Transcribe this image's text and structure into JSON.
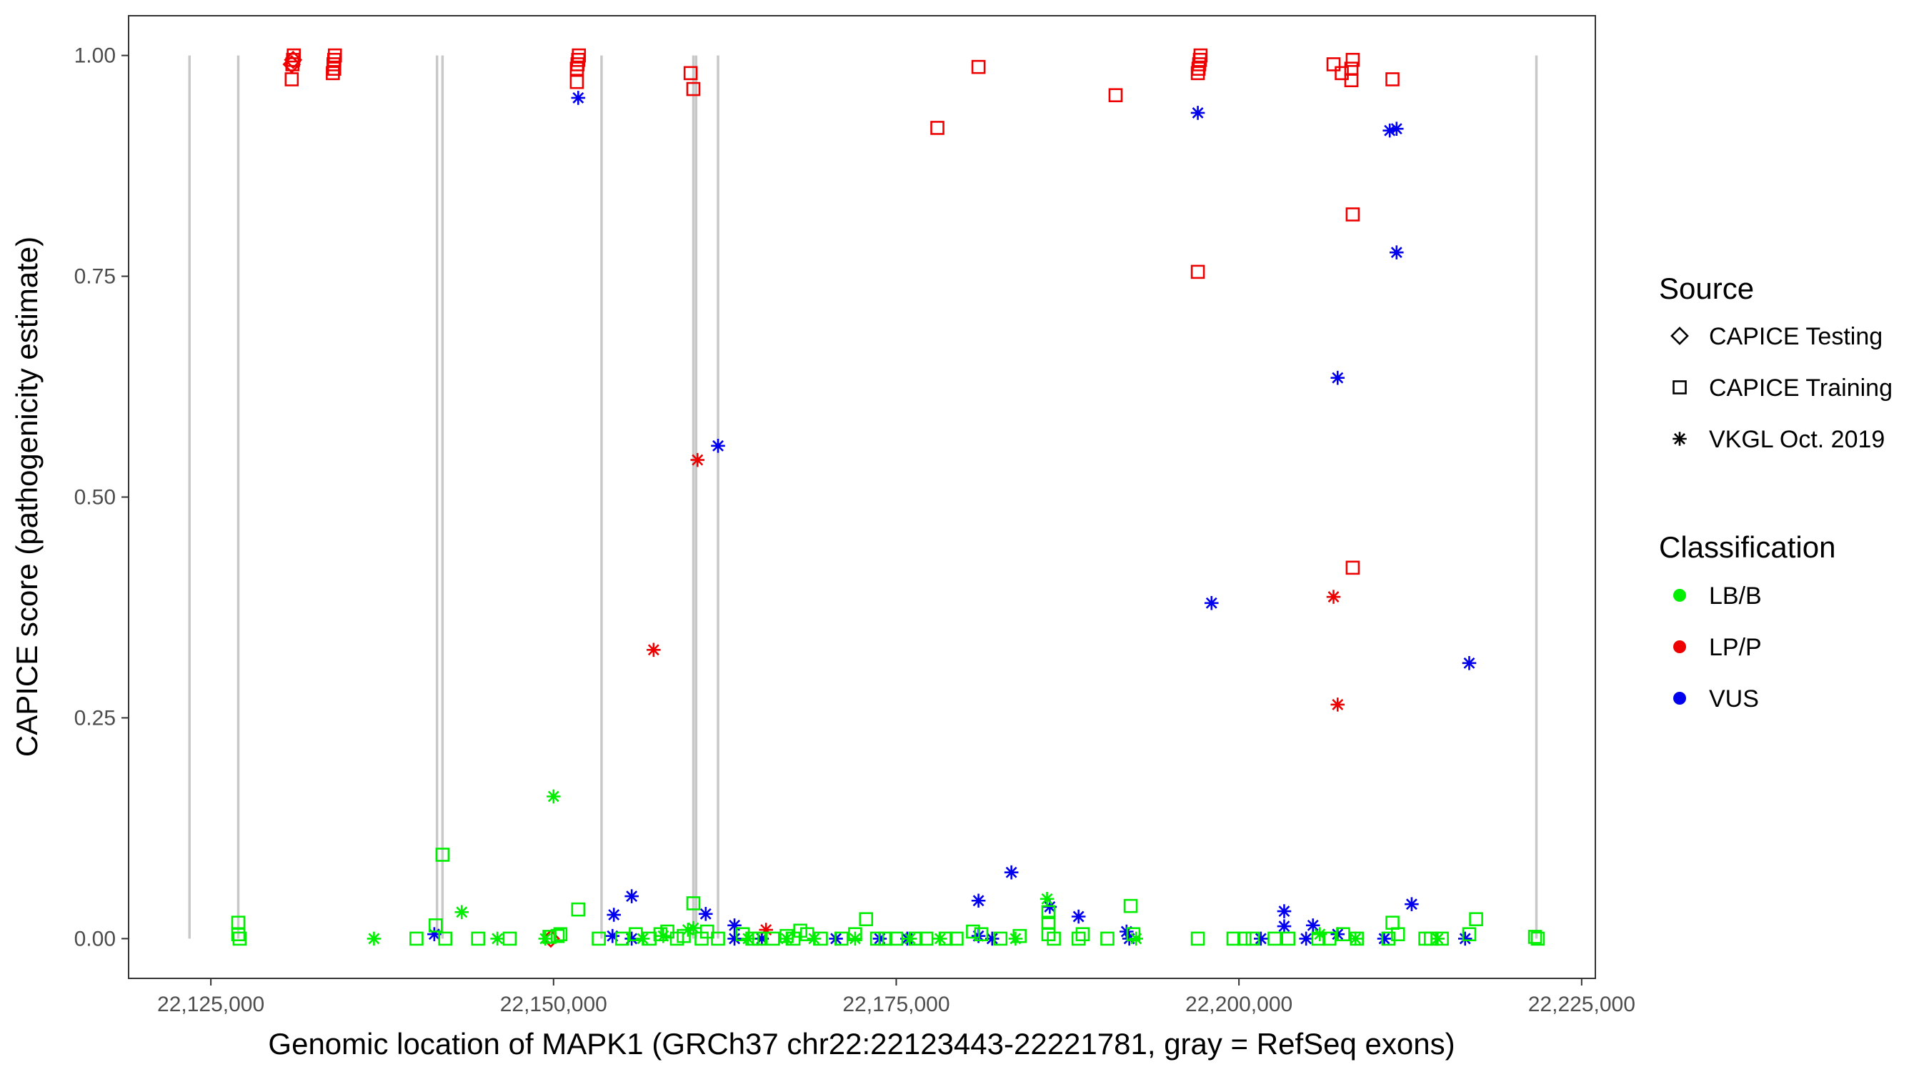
{
  "chart_data": {
    "type": "scatter",
    "title": "",
    "xlabel": "Genomic location of MAPK1 (GRCh37 chr22:22123443-22221781, gray = RefSeq exons)",
    "ylabel": "CAPICE score (pathogenicity estimate)",
    "xlim": [
      22119000,
      22226000
    ],
    "ylim": [
      -0.045,
      1.045
    ],
    "x_ticks": [
      22125000,
      22150000,
      22175000,
      22200000,
      22225000
    ],
    "x_tick_labels": [
      "22,125,000",
      "22,150,000",
      "22,175,000",
      "22,200,000",
      "22,225,000"
    ],
    "y_ticks": [
      0,
      0.25,
      0.5,
      0.75,
      1
    ],
    "y_tick_labels": [
      "0.00",
      "0.25",
      "0.50",
      "0.75",
      "1.00"
    ],
    "grid": false,
    "exons": [
      22123443,
      22127000,
      22141500,
      22141900,
      22153500,
      22160200,
      22160400,
      22162000,
      22221700
    ],
    "exon_color": "#c8c8c8",
    "legend_position": "right",
    "legend": {
      "source_title": "Source",
      "source_items": [
        {
          "label": "CAPICE Testing",
          "shape": "diamond"
        },
        {
          "label": "CAPICE Training",
          "shape": "square"
        },
        {
          "label": "VKGL Oct. 2019",
          "shape": "asterisk"
        }
      ],
      "class_title": "Classification",
      "class_items": [
        {
          "label": "LB/B",
          "color": "#00ee00"
        },
        {
          "label": "LP/P",
          "color": "#ee0000"
        },
        {
          "label": "VUS",
          "color": "#0000ee"
        }
      ]
    },
    "series": [
      {
        "source": "CAPICE Testing",
        "classification": "LP/P",
        "shape": "diamond",
        "color": "#ee0000",
        "points": [
          [
            22130900,
            0.99
          ],
          [
            22131000,
            0.995
          ],
          [
            22149800,
            0.0
          ]
        ]
      },
      {
        "source": "CAPICE Training",
        "classification": "LP/P",
        "shape": "square",
        "color": "#ee0000",
        "points": [
          [
            22130900,
            0.973
          ],
          [
            22130950,
            0.99
          ],
          [
            22131000,
            0.995
          ],
          [
            22131050,
            1.0
          ],
          [
            22133900,
            0.98
          ],
          [
            22133950,
            0.99
          ],
          [
            22134000,
            0.995
          ],
          [
            22134050,
            1.0
          ],
          [
            22134000,
            0.985
          ],
          [
            22151700,
            0.97
          ],
          [
            22151700,
            0.985
          ],
          [
            22151750,
            0.99
          ],
          [
            22151800,
            0.995
          ],
          [
            22151850,
            1.0
          ],
          [
            22160000,
            0.98
          ],
          [
            22160200,
            0.962
          ],
          [
            22178000,
            0.918
          ],
          [
            22181000,
            0.987
          ],
          [
            22191000,
            0.955
          ],
          [
            22197000,
            0.755
          ],
          [
            22197000,
            0.98
          ],
          [
            22197050,
            0.985
          ],
          [
            22197100,
            0.99
          ],
          [
            22197150,
            0.995
          ],
          [
            22197200,
            1.0
          ],
          [
            22206900,
            0.99
          ],
          [
            22207500,
            0.98
          ],
          [
            22208200,
            0.972
          ],
          [
            22208200,
            0.985
          ],
          [
            22208300,
            0.995
          ],
          [
            22208300,
            0.82
          ],
          [
            22208300,
            0.42
          ],
          [
            22211200,
            0.973
          ]
        ]
      },
      {
        "source": "VKGL Oct. 2019",
        "classification": "LP/P",
        "shape": "asterisk",
        "color": "#ee0000",
        "points": [
          [
            22157300,
            0.327
          ],
          [
            22160500,
            0.542
          ],
          [
            22165500,
            0.01
          ],
          [
            22206900,
            0.387
          ],
          [
            22207200,
            0.265
          ]
        ]
      },
      {
        "source": "VKGL Oct. 2019",
        "classification": "VUS",
        "shape": "asterisk",
        "color": "#0000ee",
        "points": [
          [
            22151800,
            0.952
          ],
          [
            22162000,
            0.558
          ],
          [
            22197000,
            0.935
          ],
          [
            22198000,
            0.38
          ],
          [
            22207200,
            0.635
          ],
          [
            22211000,
            0.915
          ],
          [
            22211500,
            0.917
          ],
          [
            22211500,
            0.777
          ],
          [
            22216800,
            0.312
          ],
          [
            22141300,
            0.005
          ],
          [
            22154400,
            0.027
          ],
          [
            22155700,
            0.048
          ],
          [
            22154300,
            0.003
          ],
          [
            22155700,
            0.0
          ],
          [
            22161100,
            0.028
          ],
          [
            22163200,
            0.015
          ],
          [
            22163200,
            0.0
          ],
          [
            22165200,
            0.0
          ],
          [
            22170600,
            0.0
          ],
          [
            22173800,
            0.0
          ],
          [
            22175800,
            0.0
          ],
          [
            22181000,
            0.043
          ],
          [
            22181000,
            0.003
          ],
          [
            22182000,
            0.0
          ],
          [
            22183400,
            0.075
          ],
          [
            22186200,
            0.036
          ],
          [
            22188300,
            0.025
          ],
          [
            22191800,
            0.008
          ],
          [
            22192000,
            0.0
          ],
          [
            22201600,
            0.0
          ],
          [
            22203300,
            0.031
          ],
          [
            22203300,
            0.014
          ],
          [
            22204900,
            0.0
          ],
          [
            22205400,
            0.015
          ],
          [
            22207200,
            0.005
          ],
          [
            22210600,
            0.0
          ],
          [
            22212600,
            0.039
          ],
          [
            22216500,
            0.0
          ]
        ]
      },
      {
        "source": "VKGL Oct. 2019",
        "classification": "LB/B",
        "shape": "asterisk",
        "color": "#00ee00",
        "points": [
          [
            22150000,
            0.161
          ],
          [
            22143300,
            0.03
          ],
          [
            22136900,
            0.0
          ],
          [
            22145900,
            0.0
          ],
          [
            22149400,
            0.0
          ],
          [
            22156500,
            0.0
          ],
          [
            22158000,
            0.003
          ],
          [
            22159800,
            0.01
          ],
          [
            22160200,
            0.012
          ],
          [
            22164200,
            0.0
          ],
          [
            22167000,
            0.0
          ],
          [
            22169000,
            0.0
          ],
          [
            22172000,
            0.0
          ],
          [
            22176000,
            0.0
          ],
          [
            22178200,
            0.0
          ],
          [
            22183700,
            0.0
          ],
          [
            22186000,
            0.045
          ],
          [
            22192500,
            0.0
          ],
          [
            22205900,
            0.005
          ],
          [
            22208500,
            0.0
          ],
          [
            22214500,
            0.0
          ]
        ]
      },
      {
        "source": "CAPICE Training",
        "classification": "LB/B",
        "shape": "square",
        "color": "#00ee00",
        "points": [
          [
            22127000,
            0.018
          ],
          [
            22127000,
            0.005
          ],
          [
            22127100,
            0.0
          ],
          [
            22141400,
            0.015
          ],
          [
            22141900,
            0.095
          ],
          [
            22142100,
            0.0
          ],
          [
            22140000,
            0.0
          ],
          [
            22144500,
            0.0
          ],
          [
            22146800,
            0.0
          ],
          [
            22149700,
            0.002
          ],
          [
            22150300,
            0.003
          ],
          [
            22150500,
            0.005
          ],
          [
            22151800,
            0.033
          ],
          [
            22153300,
            0.0
          ],
          [
            22155000,
            0.0
          ],
          [
            22156000,
            0.005
          ],
          [
            22157000,
            0.0
          ],
          [
            22157800,
            0.005
          ],
          [
            22158300,
            0.008
          ],
          [
            22159000,
            0.0
          ],
          [
            22159500,
            0.003
          ],
          [
            22160200,
            0.04
          ],
          [
            22160800,
            0.0
          ],
          [
            22161200,
            0.008
          ],
          [
            22162000,
            0.0
          ],
          [
            22163800,
            0.005
          ],
          [
            22164500,
            0.0
          ],
          [
            22165000,
            0.0
          ],
          [
            22166000,
            0.0
          ],
          [
            22167000,
            0.003
          ],
          [
            22167500,
            0.0
          ],
          [
            22168000,
            0.009
          ],
          [
            22168500,
            0.005
          ],
          [
            22169500,
            0.0
          ],
          [
            22171000,
            0.0
          ],
          [
            22172000,
            0.005
          ],
          [
            22172800,
            0.022
          ],
          [
            22173600,
            0.0
          ],
          [
            22174200,
            0.0
          ],
          [
            22175000,
            0.0
          ],
          [
            22176400,
            0.0
          ],
          [
            22177200,
            0.0
          ],
          [
            22178600,
            0.0
          ],
          [
            22179400,
            0.0
          ],
          [
            22180600,
            0.008
          ],
          [
            22181200,
            0.005
          ],
          [
            22182600,
            0.0
          ],
          [
            22184000,
            0.003
          ],
          [
            22186100,
            0.03
          ],
          [
            22186100,
            0.018
          ],
          [
            22186100,
            0.005
          ],
          [
            22186500,
            0.0
          ],
          [
            22188300,
            0.0
          ],
          [
            22188600,
            0.005
          ],
          [
            22190400,
            0.0
          ],
          [
            22192100,
            0.037
          ],
          [
            22192300,
            0.005
          ],
          [
            22197000,
            0.0
          ],
          [
            22199600,
            0.0
          ],
          [
            22200400,
            0.0
          ],
          [
            22201000,
            0.0
          ],
          [
            22202600,
            0.0
          ],
          [
            22203600,
            0.0
          ],
          [
            22205800,
            0.0
          ],
          [
            22206600,
            0.0
          ],
          [
            22207600,
            0.005
          ],
          [
            22208600,
            0.0
          ],
          [
            22210900,
            0.0
          ],
          [
            22211200,
            0.018
          ],
          [
            22211600,
            0.005
          ],
          [
            22213600,
            0.0
          ],
          [
            22214000,
            0.0
          ],
          [
            22214800,
            0.0
          ],
          [
            22216800,
            0.005
          ],
          [
            22217300,
            0.022
          ],
          [
            22221600,
            0.002
          ],
          [
            22221800,
            0.0
          ]
        ]
      }
    ]
  }
}
